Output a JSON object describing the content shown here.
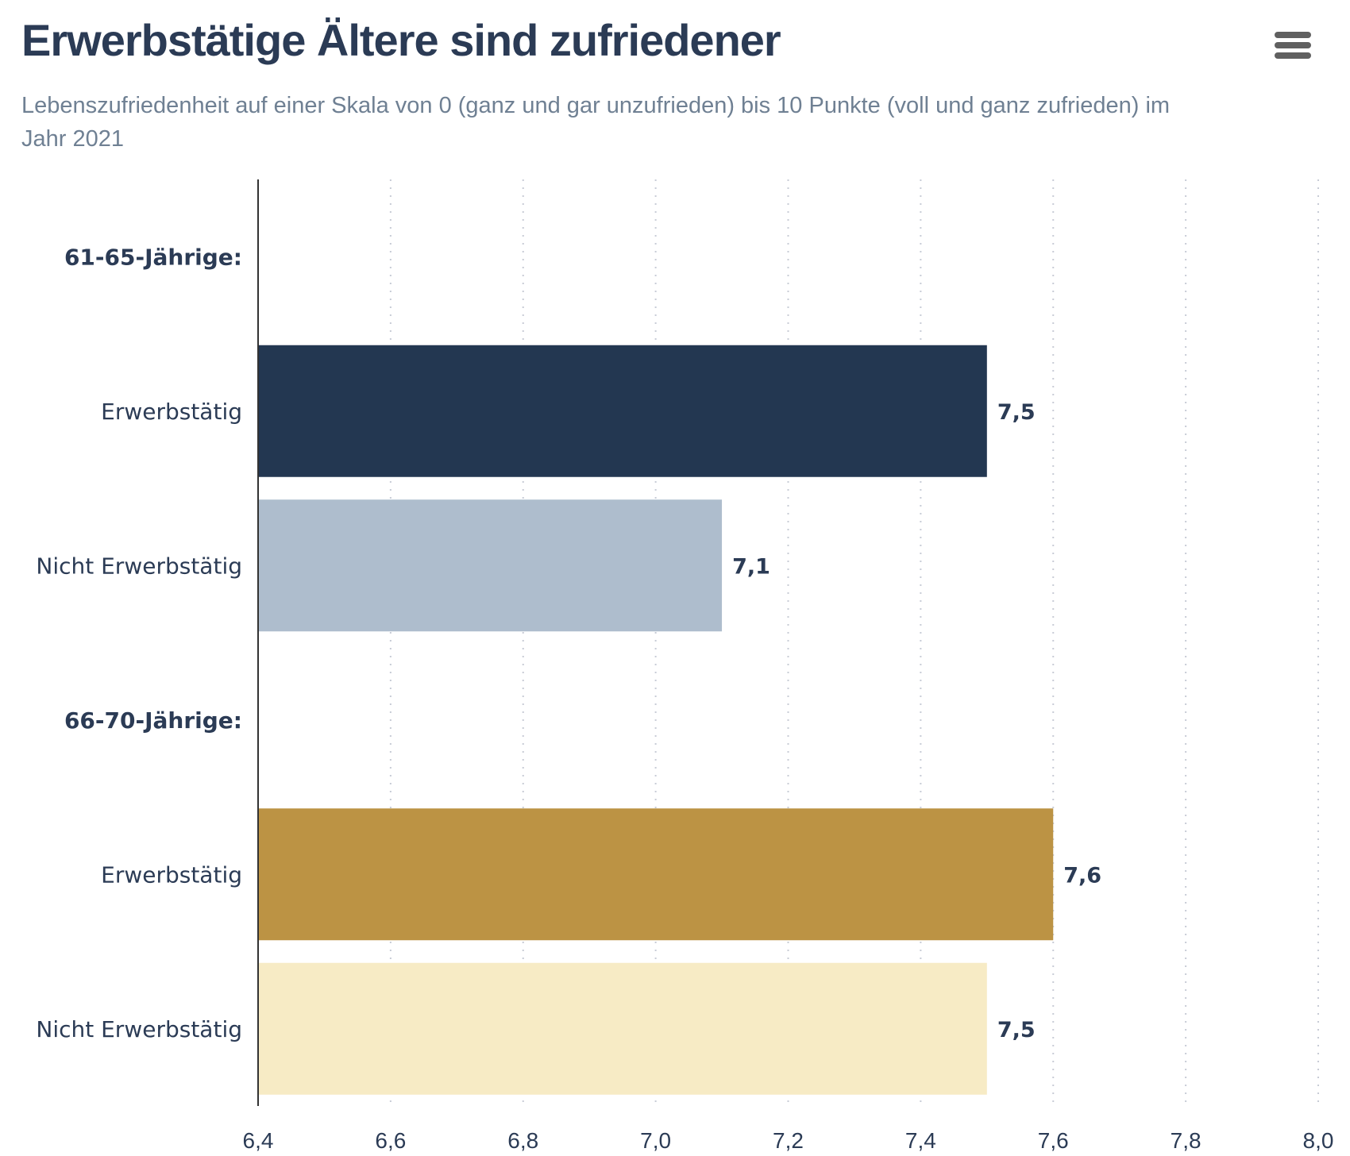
{
  "header": {
    "title": "Erwerbstätige Ältere sind zufriedener",
    "subtitle": "Lebenszufriedenheit auf einer Skala von 0 (ganz und gar unzufrieden) bis 10 Punkte (voll und ganz zufrieden) im Jahr 2021",
    "menu_icon": "hamburger-menu-icon"
  },
  "chart_data": {
    "type": "bar",
    "orientation": "horizontal",
    "title": "Erwerbstätige Ältere sind zufriedener",
    "categories": [
      "61-65-Jährige:",
      "Erwerbstätig",
      "Nicht Erwerbstätig",
      "66-70-Jährige:",
      "Erwerbstätig",
      "Nicht Erwerbstätig"
    ],
    "category_bold": [
      true,
      false,
      false,
      true,
      false,
      false
    ],
    "values": [
      null,
      7.5,
      7.1,
      null,
      7.6,
      7.5
    ],
    "data_labels": [
      "",
      "7,5",
      "7,1",
      "",
      "7,6",
      "7,5"
    ],
    "colors": [
      "#233751",
      "#233751",
      "#aebdcd",
      "#bc9344",
      "#bc9344",
      "#f7ebc5"
    ],
    "xlim": [
      6.4,
      8.0
    ],
    "xticks": [
      6.4,
      6.6,
      6.8,
      7.0,
      7.2,
      7.4,
      7.6,
      7.8,
      8.0
    ],
    "xtick_labels": [
      "6,4",
      "6,6",
      "6,8",
      "7,0",
      "7,2",
      "7,4",
      "7,6",
      "7,8",
      "8,0"
    ],
    "grid": "vertical dotted",
    "xlabel": "",
    "ylabel": ""
  }
}
